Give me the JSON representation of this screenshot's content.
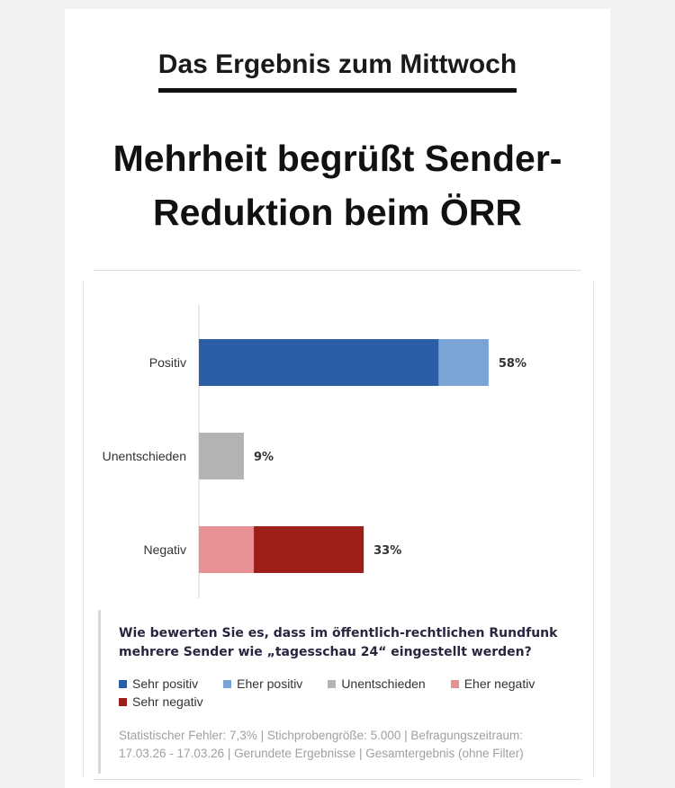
{
  "kicker": "Das Ergebnis zum Mittwoch",
  "headline_line1": "Mehrheit begrüßt Sender-",
  "headline_line2": "Reduktion beim ÖRR",
  "question": "Wie bewerten Sie es, dass im öffentlich-rechtlichen Rundfunk mehrere Sender wie „tagesschau 24“ eingestellt werden?",
  "footnote_line1": "Statistischer Fehler: 7,3% | Stichprobengröße: 5.000 | Befragungszeitraum:",
  "footnote_line2": "17.03.26 - 17.03.26 | Gerundete Ergebnisse | Gesamtergebnis (ohne Filter)",
  "colors": {
    "sehr_positiv": "#2b5ea6",
    "eher_positiv": "#7aa3d6",
    "unentschieden": "#b3b3b3",
    "eher_negativ": "#e79195",
    "sehr_negativ": "#9c2018"
  },
  "chart_data": {
    "type": "bar",
    "orientation": "horizontal",
    "stacked": true,
    "categories": [
      "Positiv",
      "Unentschieden",
      "Negativ"
    ],
    "series": [
      {
        "name": "Sehr positiv",
        "color": "#2b5ea6",
        "values": [
          48,
          0,
          0
        ]
      },
      {
        "name": "Eher positiv",
        "color": "#7aa3d6",
        "values": [
          10,
          0,
          0
        ]
      },
      {
        "name": "Unentschieden",
        "color": "#b3b3b3",
        "values": [
          0,
          9,
          0
        ]
      },
      {
        "name": "Eher negativ",
        "color": "#e79195",
        "values": [
          0,
          0,
          11
        ]
      },
      {
        "name": "Sehr negativ",
        "color": "#9c2018",
        "values": [
          0,
          0,
          22
        ]
      }
    ],
    "totals": [
      "58%",
      "9%",
      "33%"
    ],
    "xlim": [
      0,
      100
    ],
    "grid": false,
    "legend_position": "bottom"
  }
}
